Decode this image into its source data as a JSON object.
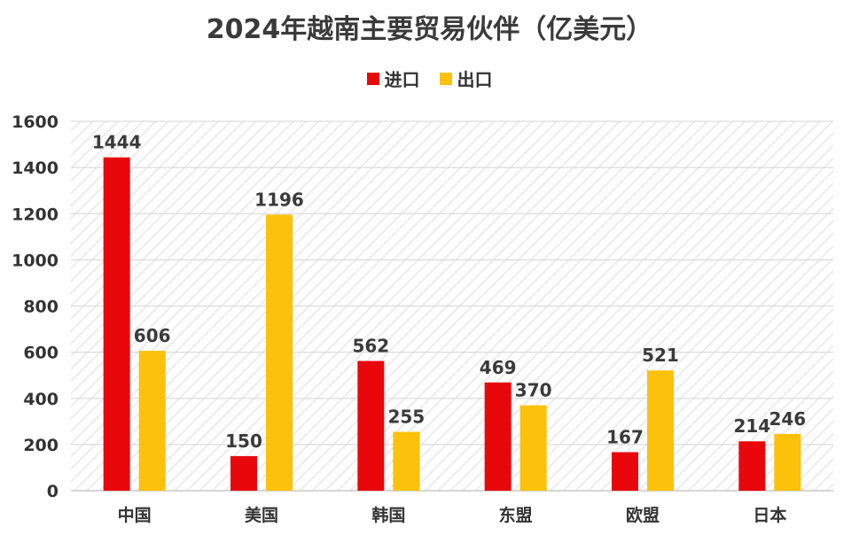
{
  "chart_data": {
    "type": "bar",
    "title": "2024年越南主要贸易伙伴（亿美元）",
    "categories": [
      "中国",
      "美国",
      "韩国",
      "东盟",
      "欧盟",
      "日本"
    ],
    "series": [
      {
        "name": "进口",
        "color": "#e8080c",
        "values": [
          1444,
          150,
          562,
          469,
          167,
          214
        ]
      },
      {
        "name": "出口",
        "color": "#fcc10a",
        "values": [
          606,
          1196,
          255,
          370,
          521,
          246
        ]
      }
    ],
    "ylim": [
      0,
      1600
    ],
    "yticks": [
      0,
      200,
      400,
      600,
      800,
      1000,
      1200,
      1400,
      1600
    ],
    "grid": true,
    "legend": "top-center",
    "xlabel": "",
    "ylabel": ""
  }
}
